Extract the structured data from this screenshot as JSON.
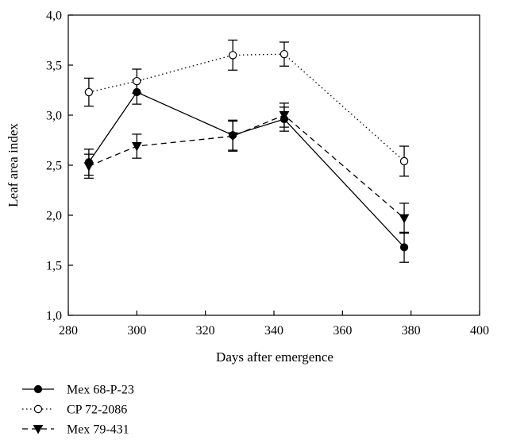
{
  "chart_data": {
    "type": "line",
    "xlabel": "Days after emergence",
    "ylabel": "Leaf area index",
    "xlim": [
      280,
      400
    ],
    "ylim": [
      1.0,
      4.0
    ],
    "x_ticks": [
      "280",
      "300",
      "320",
      "340",
      "360",
      "380",
      "400"
    ],
    "y_ticks": [
      "1,0",
      "1,5",
      "2,0",
      "2,5",
      "3,0",
      "3,5",
      "4,0"
    ],
    "grid": false,
    "legend_position": "bottom-left, below plot",
    "series": [
      {
        "name": "Mex 68-P-23",
        "marker": "filled-circle",
        "line_style": "solid",
        "color": "#000000",
        "x": [
          286,
          300,
          328,
          343,
          378
        ],
        "y": [
          2.53,
          3.23,
          2.8,
          2.96,
          1.68
        ],
        "err": [
          0.13,
          0.12,
          0.15,
          0.12,
          0.15
        ]
      },
      {
        "name": "CP 72-2086",
        "marker": "open-circle",
        "line_style": "dotted",
        "color": "#000000",
        "x": [
          286,
          300,
          328,
          343,
          378
        ],
        "y": [
          3.23,
          3.34,
          3.6,
          3.61,
          2.54
        ],
        "err": [
          0.14,
          0.12,
          0.15,
          0.12,
          0.15
        ]
      },
      {
        "name": "Mex 79-431",
        "marker": "filled-triangle-down",
        "line_style": "dashed",
        "color": "#000000",
        "x": [
          286,
          300,
          328,
          343,
          378
        ],
        "y": [
          2.49,
          2.69,
          2.79,
          3.0,
          1.97
        ],
        "err": [
          0.12,
          0.12,
          0.15,
          0.12,
          0.15
        ]
      }
    ]
  }
}
